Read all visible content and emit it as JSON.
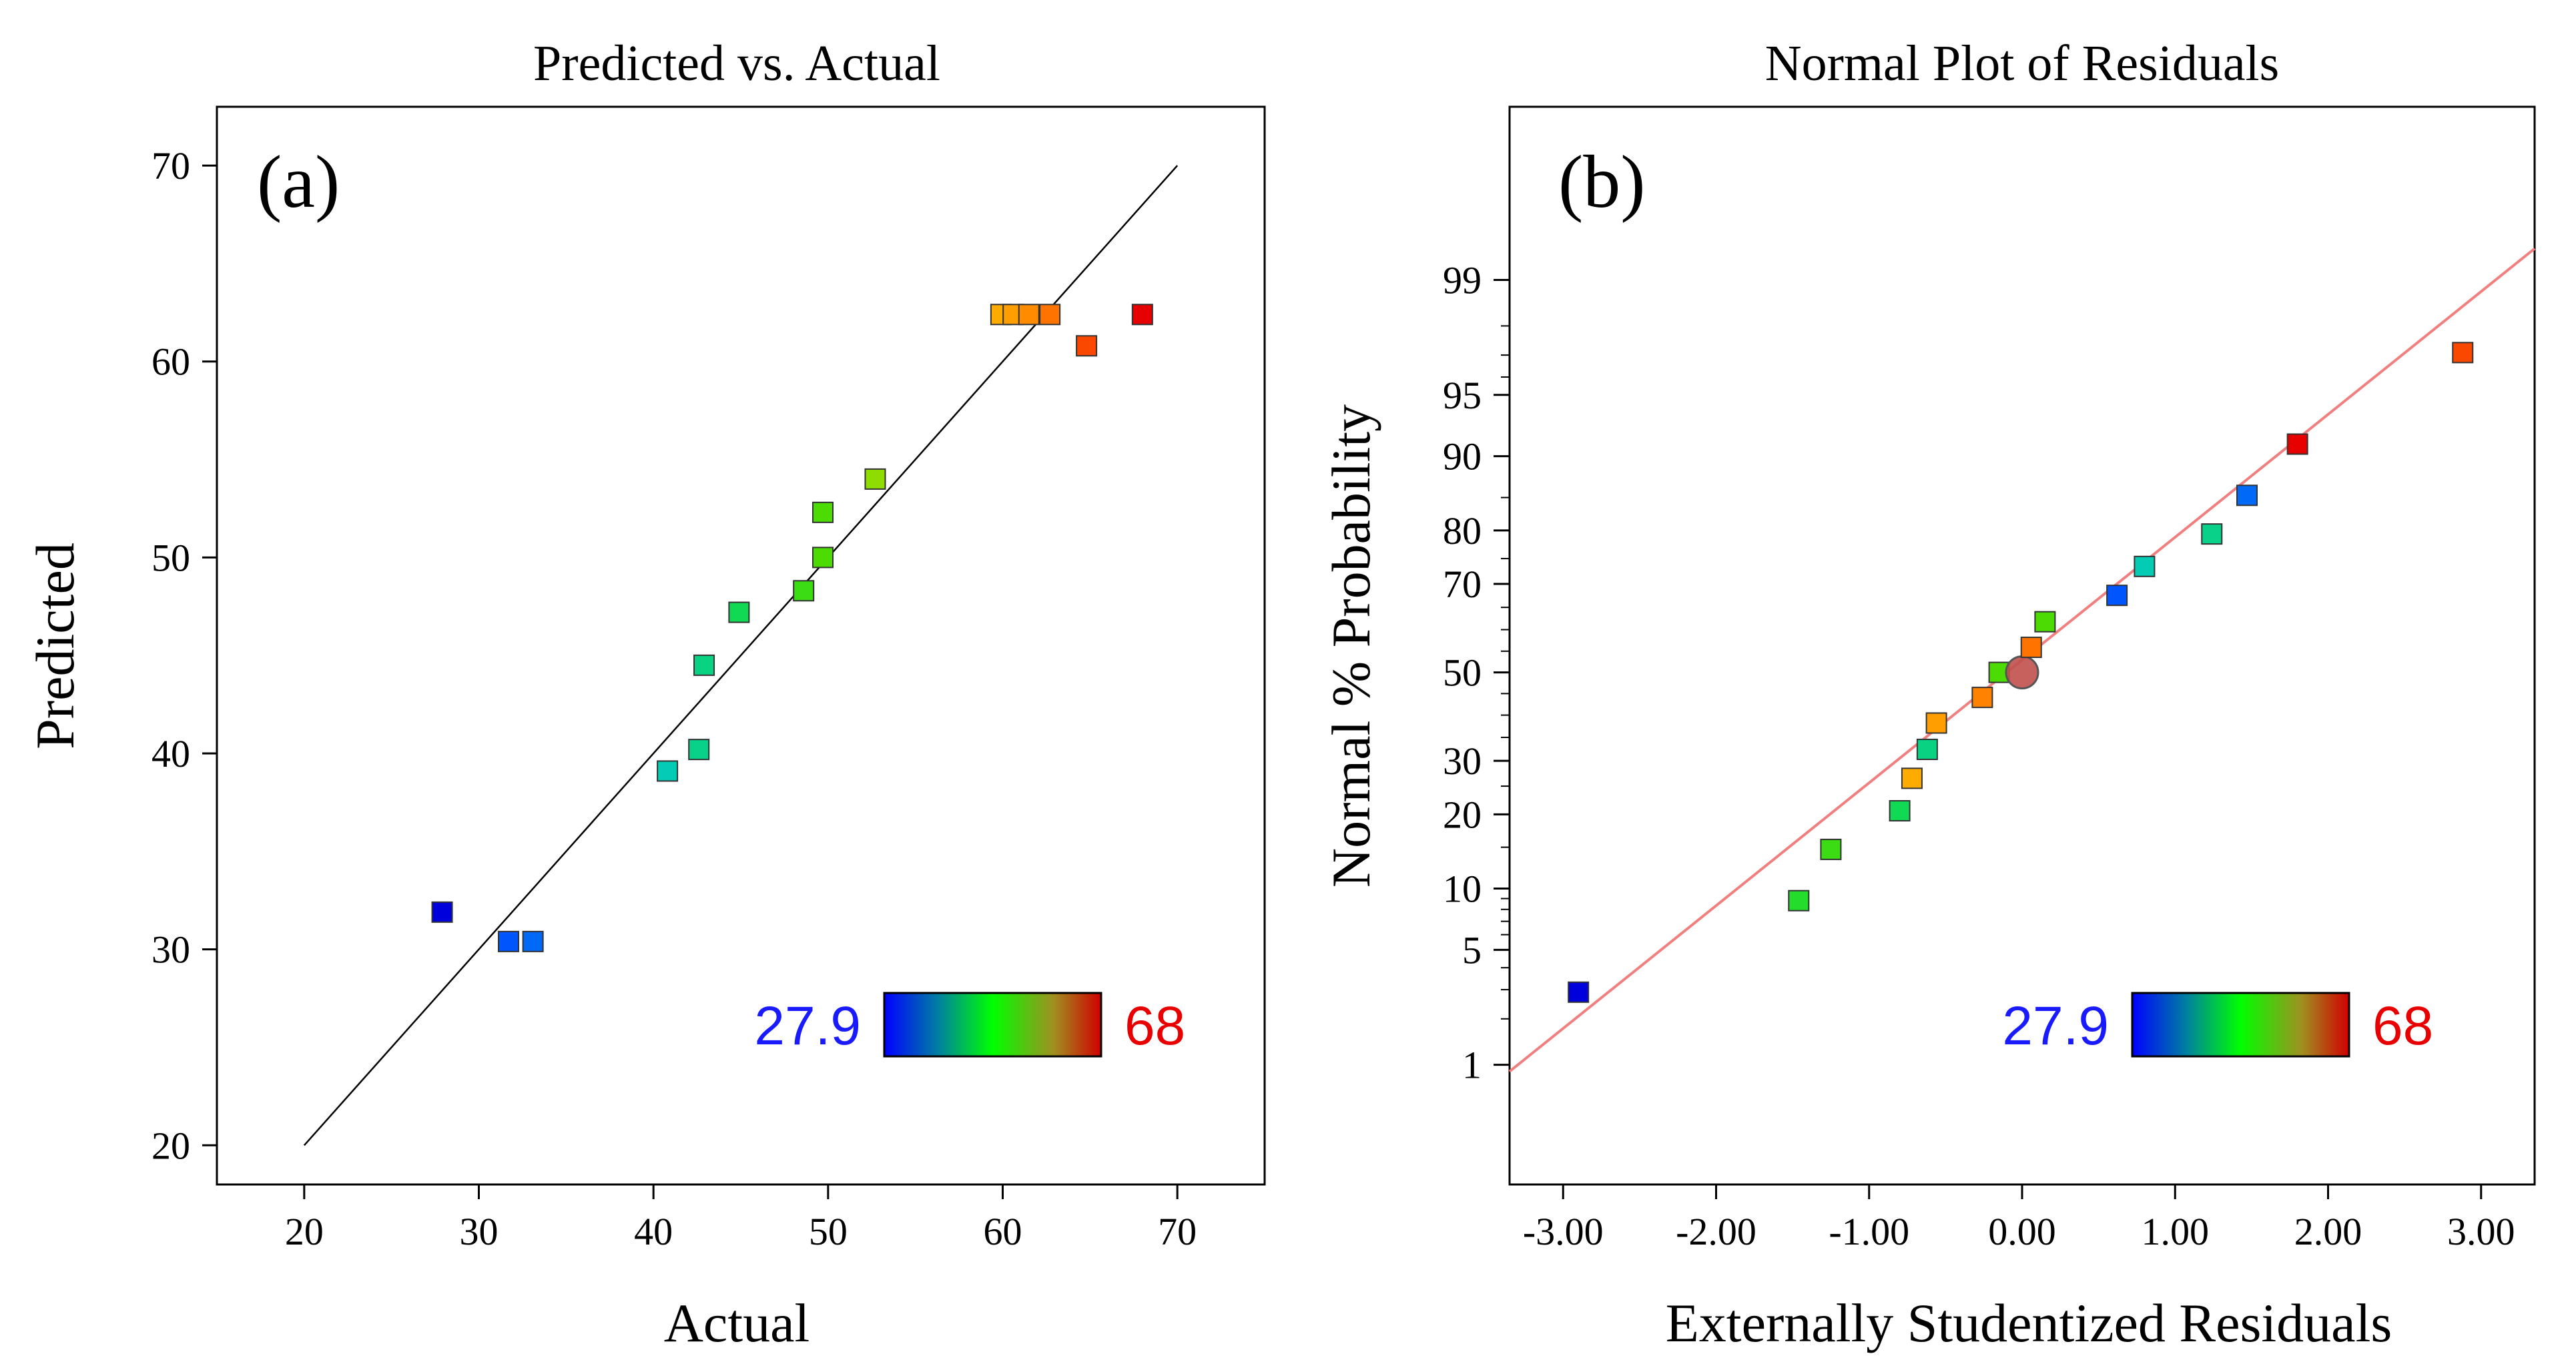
{
  "colors": {
    "low": "#1a1aff",
    "high": "#e80000",
    "fit_line_a": "#000000",
    "fit_line_b": "#f08080"
  },
  "chart_data": [
    {
      "id": "a",
      "type": "scatter",
      "title": "Predicted vs. Actual",
      "panel_label": "(a)",
      "xlabel": "Actual",
      "ylabel": "Predicted",
      "xlim": [
        15,
        75
      ],
      "ylim": [
        18,
        73
      ],
      "xticks": [
        20,
        30,
        40,
        50,
        60,
        70
      ],
      "yticks": [
        20,
        30,
        40,
        50,
        60,
        70
      ],
      "reference_line": {
        "from": [
          20,
          20
        ],
        "to": [
          70,
          70
        ]
      },
      "points": [
        {
          "x": 27.9,
          "y": 31.9
        },
        {
          "x": 31.7,
          "y": 30.4
        },
        {
          "x": 33.1,
          "y": 30.4
        },
        {
          "x": 40.8,
          "y": 39.1
        },
        {
          "x": 42.6,
          "y": 40.2
        },
        {
          "x": 42.9,
          "y": 44.5
        },
        {
          "x": 44.9,
          "y": 47.2
        },
        {
          "x": 48.6,
          "y": 48.3
        },
        {
          "x": 49.7,
          "y": 50.0
        },
        {
          "x": 49.7,
          "y": 52.3
        },
        {
          "x": 52.7,
          "y": 54.0
        },
        {
          "x": 59.9,
          "y": 62.4
        },
        {
          "x": 60.6,
          "y": 62.4
        },
        {
          "x": 61.5,
          "y": 62.4
        },
        {
          "x": 62.7,
          "y": 62.4
        },
        {
          "x": 64.8,
          "y": 60.8
        },
        {
          "x": 68.0,
          "y": 62.4
        }
      ],
      "color_scale": {
        "min": 27.9,
        "max": 68,
        "min_label": "27.9",
        "max_label": "68"
      }
    },
    {
      "id": "b",
      "type": "scatter",
      "title": "Normal Plot of Residuals",
      "panel_label": "(b)",
      "xlabel": "Externally Studentized Residuals",
      "ylabel": "Normal % Probability",
      "xlim": [
        -3.35,
        3.35
      ],
      "ylim_percent": [
        0.12,
        99.96
      ],
      "xticks": [
        -3,
        -2,
        -1,
        0,
        1,
        2,
        3
      ],
      "xtick_labels": [
        "-3.00",
        "-2.00",
        "-1.00",
        "0.00",
        "1.00",
        "2.00",
        "3.00"
      ],
      "yticks": [
        1,
        5,
        10,
        20,
        30,
        50,
        70,
        80,
        90,
        95,
        99
      ],
      "ytick_labels": [
        "1",
        "5",
        "10",
        "20",
        "30",
        "50",
        "70",
        "80",
        "90",
        "95",
        "99"
      ],
      "fit_line": {
        "from": [
          -3.35,
          0.9
        ],
        "to": [
          3.35,
          99.4
        ]
      },
      "points": [
        {
          "x": -2.9,
          "y": 2.9,
          "value": 27.9
        },
        {
          "x": -1.46,
          "y": 8.8,
          "value": 47.0
        },
        {
          "x": -1.25,
          "y": 14.7,
          "value": 48.6
        },
        {
          "x": -0.8,
          "y": 20.6,
          "value": 44.9
        },
        {
          "x": -0.72,
          "y": 26.5,
          "value": 59.9
        },
        {
          "x": -0.62,
          "y": 32.4,
          "value": 42.9
        },
        {
          "x": -0.56,
          "y": 38.2,
          "value": 60.6
        },
        {
          "x": -0.15,
          "y": 50.0,
          "value": 49.7
        },
        {
          "x": -0.26,
          "y": 44.1,
          "value": 62.0
        },
        {
          "x": 0.0,
          "y": 50.0,
          "value": null,
          "center": true
        },
        {
          "x": 0.06,
          "y": 55.9,
          "value": 62.7
        },
        {
          "x": 0.15,
          "y": 61.8,
          "value": 49.7
        },
        {
          "x": 0.62,
          "y": 67.6,
          "value": 31.7
        },
        {
          "x": 0.8,
          "y": 73.5,
          "value": 40.8
        },
        {
          "x": 1.24,
          "y": 79.4,
          "value": 42.6
        },
        {
          "x": 1.47,
          "y": 85.3,
          "value": 33.1
        },
        {
          "x": 1.8,
          "y": 91.2,
          "value": 68.0
        },
        {
          "x": 2.88,
          "y": 97.1,
          "value": 64.8
        }
      ],
      "color_scale": {
        "min": 27.9,
        "max": 68,
        "min_label": "27.9",
        "max_label": "68"
      }
    }
  ]
}
